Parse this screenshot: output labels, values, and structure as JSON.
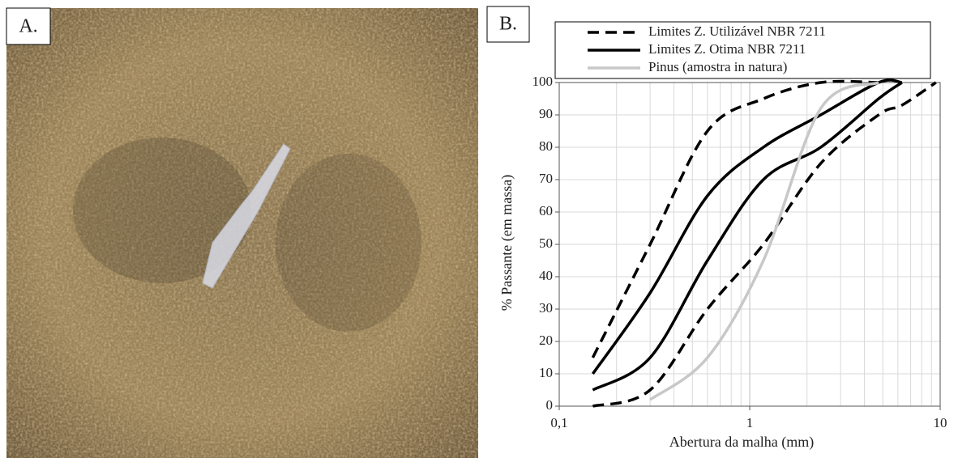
{
  "panels": {
    "a_label": "A.",
    "b_label": "B."
  },
  "chart_data": {
    "type": "line",
    "x_label": "Abertura da malha (mm)",
    "y_label": "% Passante (em massa)",
    "xscale": "log",
    "xlim": [
      0.1,
      10
    ],
    "xticks": [
      {
        "value": 0.1,
        "label": "0,1"
      },
      1,
      10
    ],
    "ylim": [
      0,
      100
    ],
    "yticks": [
      0,
      10,
      20,
      30,
      40,
      50,
      60,
      70,
      80,
      90,
      100
    ],
    "grid": true,
    "series": [
      {
        "name": "Limites Z. Utilizável NBR 7211",
        "color": "#000000",
        "dash": "dashed",
        "x": [
          0.15,
          0.3,
          0.6,
          1.18,
          2.36,
          4.75
        ],
        "values": [
          15,
          50,
          85,
          95,
          100,
          100
        ]
      },
      {
        "name": "",
        "color": "#000000",
        "dash": "dashed",
        "x": [
          0.15,
          0.3,
          0.6,
          1.18,
          2.36,
          4.75,
          6.3,
          9.5
        ],
        "values": [
          0,
          5,
          30,
          50,
          75,
          90,
          93,
          100
        ]
      },
      {
        "name": "Limites Z. Otima NBR 7211",
        "color": "#000000",
        "dash": "solid",
        "x": [
          0.15,
          0.3,
          0.6,
          1.18,
          2.36,
          4.75,
          6.3
        ],
        "values": [
          10,
          35,
          65,
          80,
          90,
          100,
          100
        ]
      },
      {
        "name": "",
        "color": "#000000",
        "dash": "solid",
        "x": [
          0.15,
          0.3,
          0.6,
          1.18,
          2.36,
          4.75,
          6.3
        ],
        "values": [
          5,
          15,
          45,
          70,
          80,
          95,
          100
        ]
      },
      {
        "name": "Pinus (amostra in natura)",
        "color": "#c8c8c8",
        "dash": "solid",
        "x": [
          0.3,
          0.6,
          1.18,
          2.36,
          4.75
        ],
        "values": [
          2,
          15,
          45,
          92,
          100
        ]
      }
    ]
  }
}
